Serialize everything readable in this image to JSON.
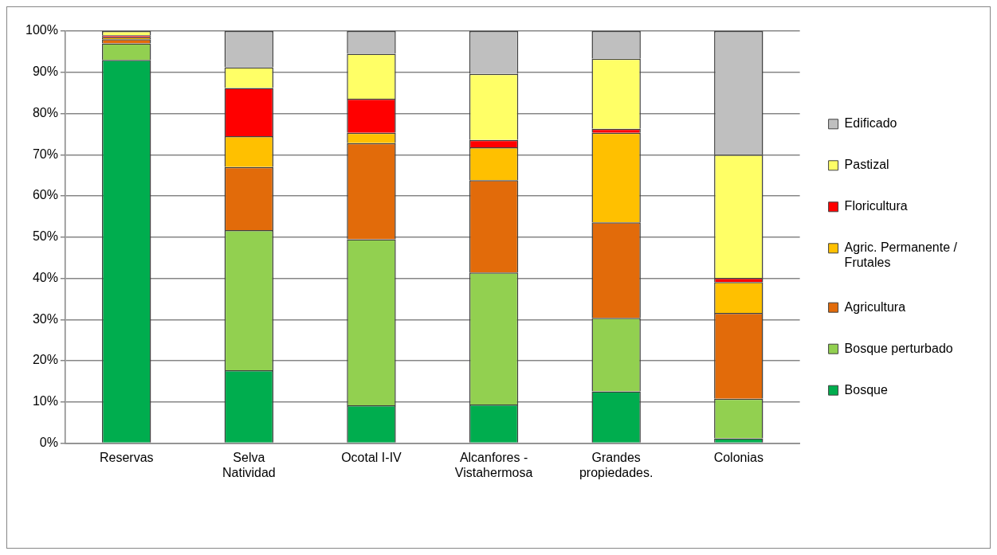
{
  "chart_data": {
    "type": "bar",
    "stacked": true,
    "categories": [
      "Reservas",
      "Selva Natividad",
      "Ocotal I-IV",
      "Alcanfores - Vistahermosa",
      "Grandes propiedades.",
      "Colonias"
    ],
    "series": [
      {
        "name": "Bosque",
        "color": "#00ad4e",
        "values": [
          93,
          17.7,
          9.2,
          9.4,
          12.6,
          1.2
        ]
      },
      {
        "name": "Bosque perturbado",
        "color": "#92d050",
        "values": [
          4,
          34,
          40.3,
          32,
          17.8,
          9.6
        ]
      },
      {
        "name": "Agricultura",
        "color": "#e26b0a",
        "values": [
          1,
          15.3,
          23.3,
          22.4,
          23.2,
          20.8
        ]
      },
      {
        "name": "Agric. Permanente / Frutales",
        "color": "#ffc000",
        "values": [
          0.5,
          7.5,
          2.5,
          8,
          21.7,
          7.5
        ]
      },
      {
        "name": "Floricultura",
        "color": "#ff0000",
        "values": [
          0.5,
          11.7,
          8.3,
          1.8,
          1,
          1
        ]
      },
      {
        "name": "Pastizal",
        "color": "#ffff66",
        "values": [
          1,
          5,
          10.9,
          16,
          17,
          29.9
        ]
      },
      {
        "name": "Edificado",
        "color": "#bfbfbf",
        "values": [
          null,
          8.8,
          5.5,
          10.4,
          6.7,
          30
        ]
      }
    ],
    "ylim": [
      0,
      100
    ],
    "yticks": [
      {
        "value": 0,
        "label": "0%"
      },
      {
        "value": 10,
        "label": "10%"
      },
      {
        "value": 20,
        "label": "20%"
      },
      {
        "value": 30,
        "label": "30%"
      },
      {
        "value": 40,
        "label": "40%"
      },
      {
        "value": 50,
        "label": "50%"
      },
      {
        "value": 60,
        "label": "60%"
      },
      {
        "value": 70,
        "label": "70%"
      },
      {
        "value": 80,
        "label": "80%"
      },
      {
        "value": 90,
        "label": "90%"
      },
      {
        "value": 100,
        "label": "100%"
      }
    ],
    "grid": "y",
    "legend": "right"
  }
}
